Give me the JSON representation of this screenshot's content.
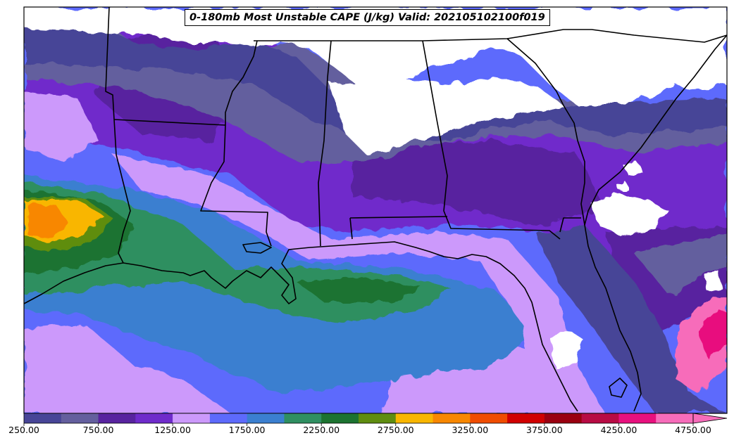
{
  "title": "0-180mb Most Unstable CAPE (J/kg) Valid: 202105102100f019",
  "colorbar": {
    "tick_labels": [
      "250.00",
      "750.00",
      "1250.00",
      "1750.00",
      "2250.00",
      "2750.00",
      "3250.00",
      "3750.00",
      "4250.00",
      "4750.00"
    ],
    "colors": [
      "#474597",
      "#645f9e",
      "#58239f",
      "#6f2bcb",
      "#cc99fb",
      "#5d6afc",
      "#3b7fd0",
      "#2f8f61",
      "#1c7330",
      "#5f8d10",
      "#f9b600",
      "#f88700",
      "#f04c00",
      "#d10000",
      "#9a0010",
      "#b80b44",
      "#e8107e",
      "#f76cba"
    ],
    "extend": "max"
  },
  "map_region": "US Gulf Coast and southeastern states with Gulf of Mexico",
  "colors": {
    "missing_area": "#ffffff",
    "borders": "#000000"
  }
}
